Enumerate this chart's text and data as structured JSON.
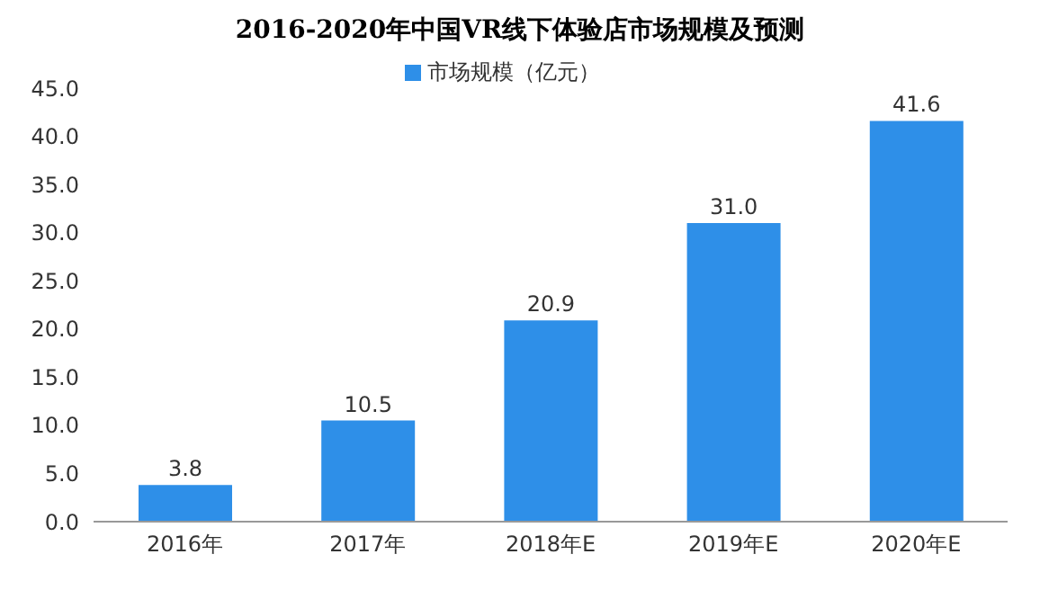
{
  "chart_data": {
    "type": "bar",
    "title": "2016-2020年中国VR线下体验店市场规模及预测",
    "categories": [
      "2016年",
      "2017年",
      "2018年E",
      "2019年E",
      "2020年E"
    ],
    "series": [
      {
        "name": "市场规模（亿元）",
        "color": "#2e8fe8",
        "values": [
          3.8,
          10.5,
          20.9,
          31.0,
          41.6
        ],
        "value_labels": [
          "3.8",
          "10.5",
          "20.9",
          "31.0",
          "41.6"
        ]
      }
    ],
    "ylim": [
      0,
      45
    ],
    "yticks": [
      {
        "value": 0,
        "label": "0.0"
      },
      {
        "value": 5,
        "label": "5.0"
      },
      {
        "value": 10,
        "label": "10.0"
      },
      {
        "value": 15,
        "label": "15.0"
      },
      {
        "value": 20,
        "label": "20.0"
      },
      {
        "value": 25,
        "label": "25.0"
      },
      {
        "value": 30,
        "label": "30.0"
      },
      {
        "value": 35,
        "label": "35.0"
      },
      {
        "value": 40,
        "label": "40.0"
      },
      {
        "value": 45,
        "label": "45.0"
      }
    ],
    "legend": "top",
    "grid": false
  }
}
